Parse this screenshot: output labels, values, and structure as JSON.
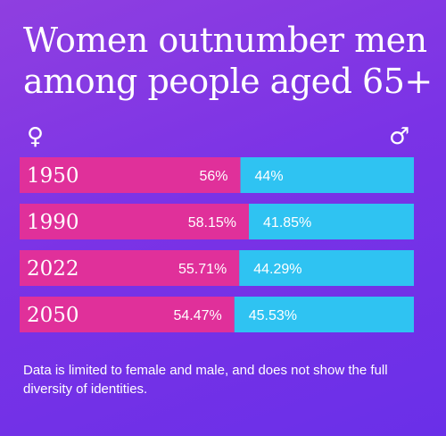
{
  "chart_data": {
    "type": "bar",
    "orientation": "horizontal",
    "stacked": true,
    "title_lines": [
      "Women outnumber men",
      "among people aged 65+"
    ],
    "categories": [
      "1950",
      "1990",
      "2022",
      "2050"
    ],
    "series": [
      {
        "values": [
          56,
          58.15,
          55.71,
          54.47
        ],
        "labels": [
          "56%",
          "58.15%",
          "55.71%",
          "54.47%"
        ],
        "color": "#e0309a"
      },
      {
        "values": [
          44,
          41.85,
          44.29,
          45.53
        ],
        "labels": [
          "44%",
          "41.85%",
          "44.29%",
          "45.53%"
        ],
        "color": "#2fc3f2"
      }
    ],
    "xlim": [
      0,
      100
    ],
    "grid": false,
    "legend_icons": {
      "female": "♀",
      "male": "♂"
    }
  },
  "footnote": "Data is limited to female and male, and does not show the full diversity of identities."
}
